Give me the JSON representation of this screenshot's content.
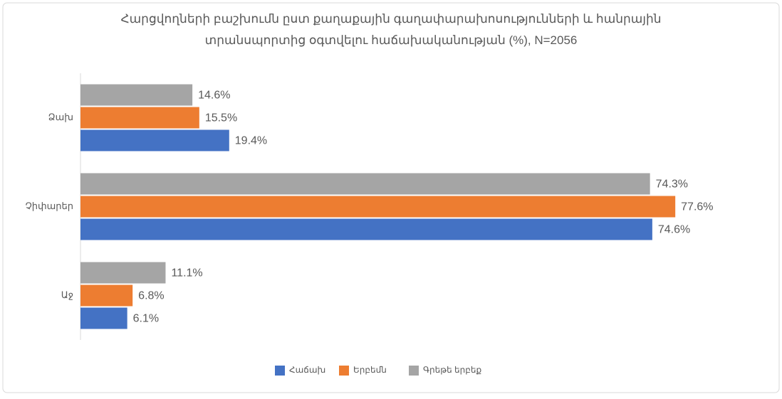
{
  "chart_data": {
    "type": "bar",
    "orientation": "horizontal",
    "title": "Հարցվողների բաշխումն ըստ քաղաքային գաղափարախոսությունների և հանրային տրանսպորտից օգտվելու հաճախականության (%), N=2056",
    "categories": [
      "Ձախ",
      "Չիփարեր",
      "Աջ"
    ],
    "series": [
      {
        "name": "Հաճախ",
        "color": "#4472c4",
        "values": [
          19.4,
          74.6,
          6.1
        ],
        "value_labels": [
          "19.4%",
          "74.6%",
          "6.1%"
        ]
      },
      {
        "name": "Երբեմն",
        "color": "#ed7d31",
        "values": [
          15.5,
          77.6,
          6.8
        ],
        "value_labels": [
          "15.5%",
          "77.6%",
          "6.8%"
        ]
      },
      {
        "name": "Գրեթե երբեք",
        "color": "#a5a5a5",
        "values": [
          14.6,
          74.3,
          11.1
        ],
        "value_labels": [
          "14.6%",
          "74.3%",
          "11.1%"
        ]
      }
    ],
    "xlim": [
      0,
      80
    ],
    "legend": "bottom"
  }
}
